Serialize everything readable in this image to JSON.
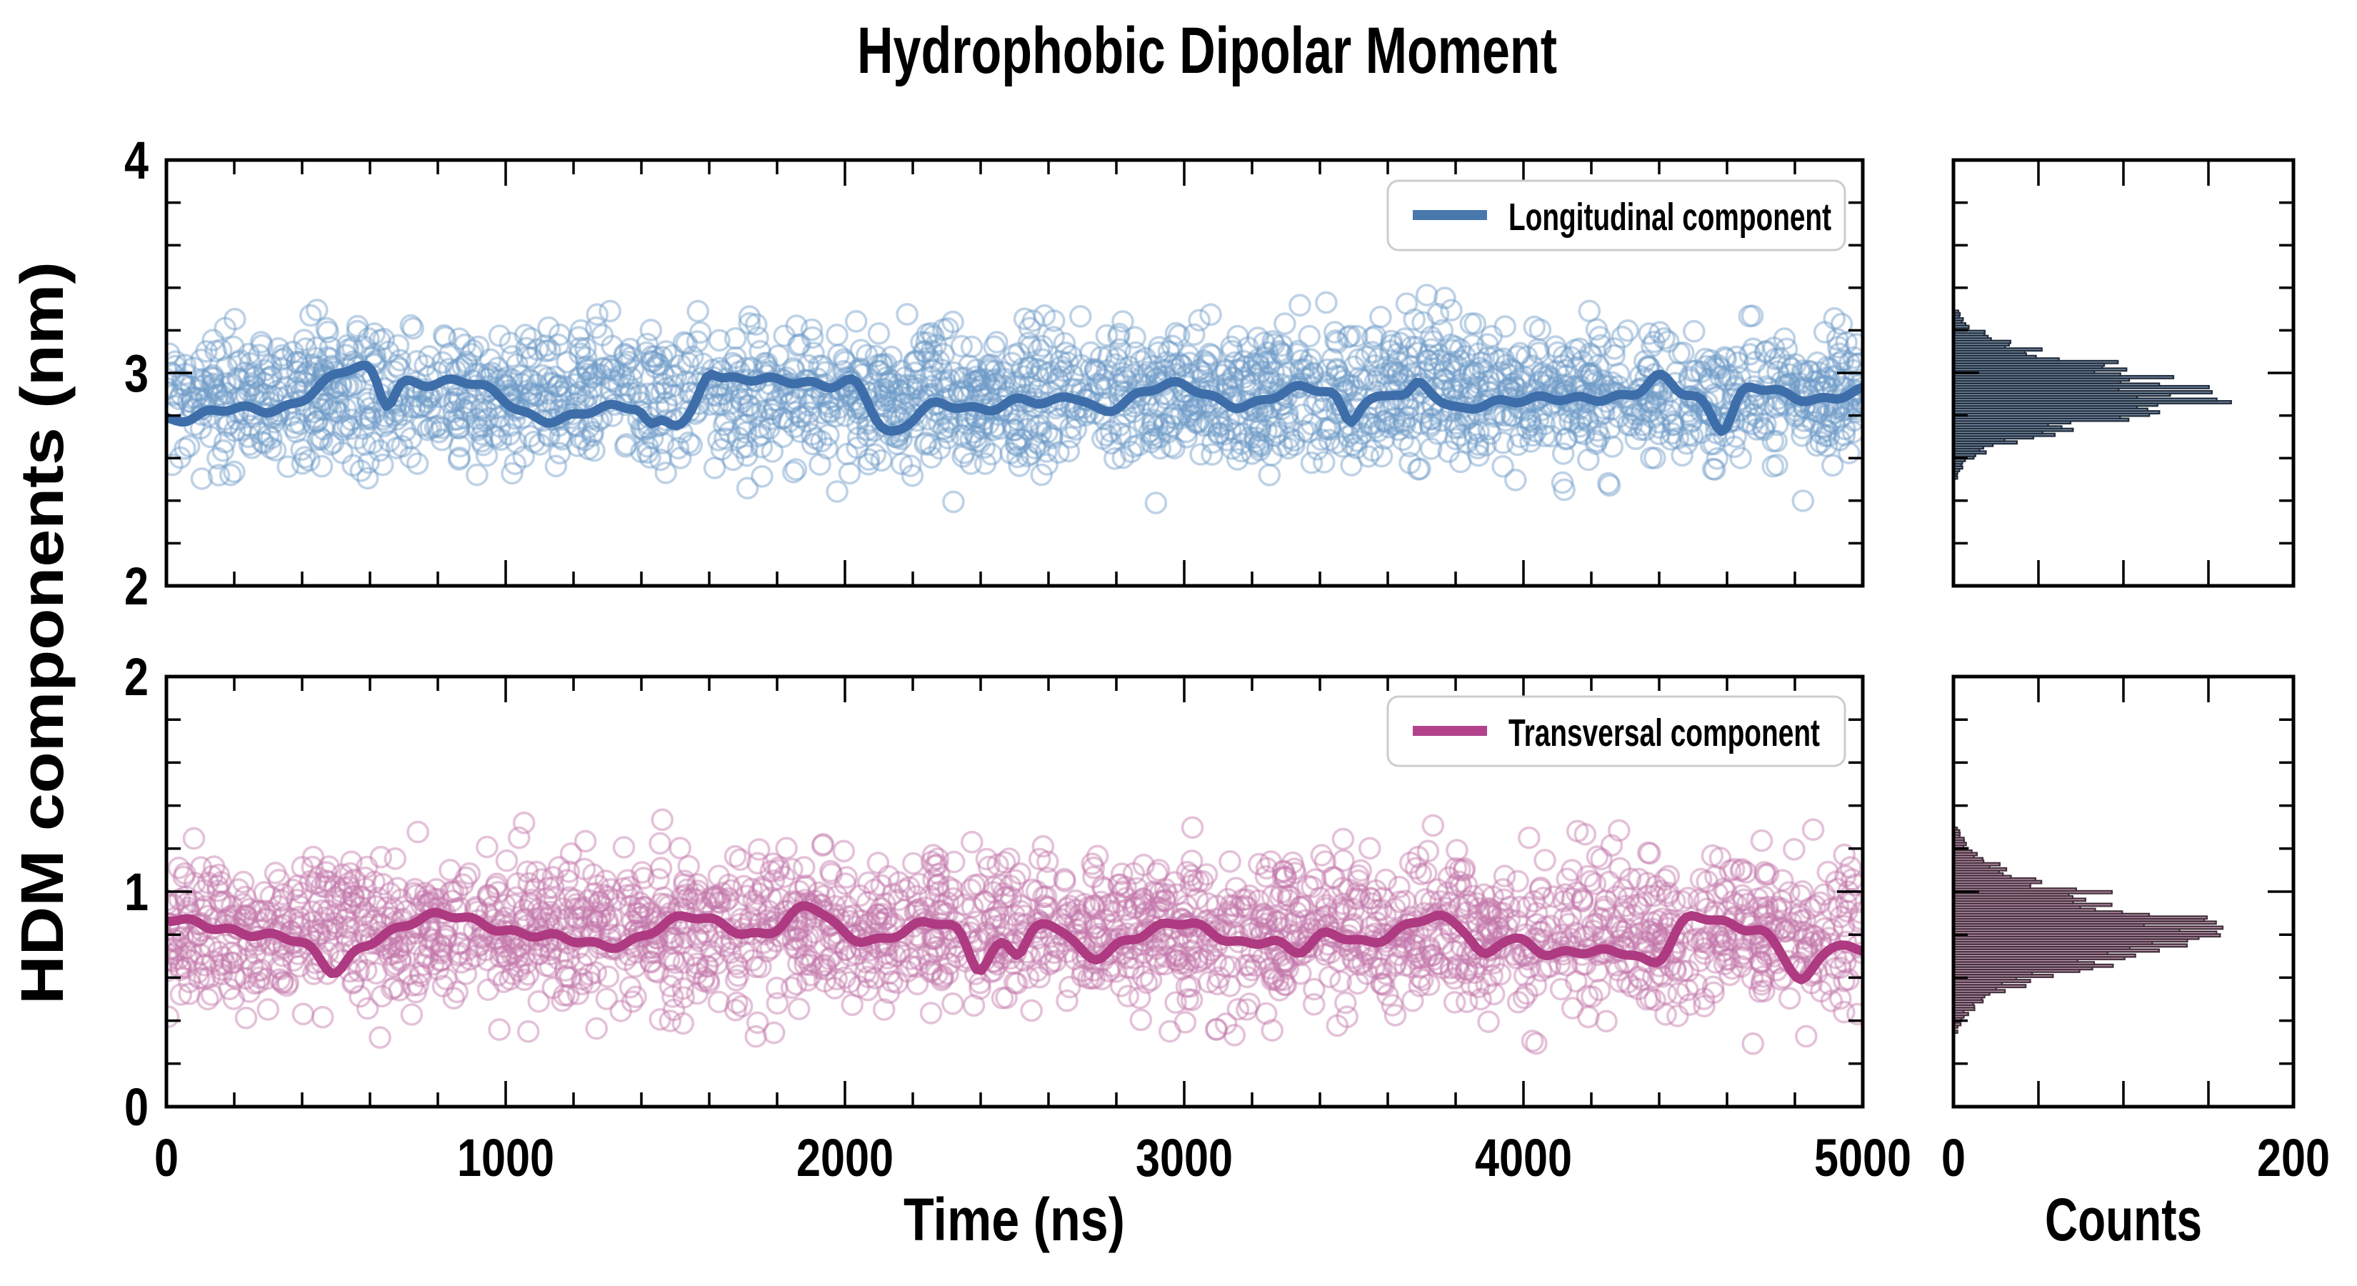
{
  "title": "Hydrophobic Dipolar Moment",
  "axes": {
    "ylabel": "HDM components (nm)",
    "xlabel_time": "Time (ns)",
    "xlabel_counts": "Counts",
    "time_ticks_labeled": [
      "0",
      "1000",
      "2000",
      "3000",
      "4000",
      "5000"
    ],
    "counts_ticks_labeled": [
      "0",
      "200"
    ],
    "top_panel_yticks": [
      "4",
      "3",
      "2"
    ],
    "bottom_panel_yticks": [
      "2",
      "1",
      "0"
    ]
  },
  "colors": {
    "longitudinal_line": "#3e6ea9",
    "longitudinal_marker": "#6f9cc8",
    "transversal_line": "#ae3a81",
    "transversal_marker": "#c478aa",
    "hist_top_fill": "#8fa7c4",
    "hist_top_edge": "#232e3c",
    "hist_bottom_fill": "#d4a5c4",
    "hist_bottom_edge": "#45333e",
    "axis": "#000000",
    "legend_border": "#cccccc",
    "legend_bg": "#ffffff"
  },
  "chart_data": [
    {
      "type": "scatter",
      "panel": "top",
      "series_name": "Longitudinal component",
      "x_range_ns": [
        0,
        5000
      ],
      "y_range_nm": [
        2,
        4
      ],
      "xticks_major_ns": [
        0,
        1000,
        2000,
        3000,
        4000,
        5000
      ],
      "xtick_minor_step_ns": 200,
      "yticks_major_nm": [
        2,
        3,
        4
      ],
      "ytick_minor_step_nm": 0.2,
      "mean_nm": 2.895,
      "scatter_std_nm": 0.16,
      "scatter_range_nm": [
        2.38,
        3.4
      ],
      "line_std_nm": 0.045,
      "legend_position": "upper right",
      "render": {
        "n_points": 2200,
        "seed_scatter": 101,
        "seed_line": 102,
        "marker_opacity": 0.45
      }
    },
    {
      "type": "scatter",
      "panel": "bottom",
      "series_name": "Transversal component",
      "x_range_ns": [
        0,
        5000
      ],
      "y_range_nm": [
        0,
        2
      ],
      "xticks_major_ns": [
        0,
        1000,
        2000,
        3000,
        4000,
        5000
      ],
      "xtick_minor_step_ns": 200,
      "yticks_major_nm": [
        0,
        1,
        2
      ],
      "ytick_minor_step_nm": 0.2,
      "mean_nm": 0.815,
      "scatter_std_nm": 0.175,
      "scatter_range_nm": [
        0.24,
        1.34
      ],
      "line_std_nm": 0.05,
      "legend_position": "upper right",
      "render": {
        "n_points": 2200,
        "seed_scatter": 201,
        "seed_line": 202,
        "marker_opacity": 0.45
      }
    },
    {
      "type": "histogram",
      "panel": "top-right",
      "of_series": "Longitudinal component",
      "orientation": "horizontal",
      "counts_range": [
        0,
        200
      ],
      "counts_ticks_drawn": [
        50,
        100,
        150
      ],
      "value_range_nm": [
        2,
        4
      ],
      "peak_value_nm": 2.9,
      "sigma_nm": 0.135,
      "peak_count": 138,
      "spike_count": 152,
      "bin_width_nm": 0.0118,
      "half_range_nm": 0.48,
      "render": {
        "seed": 301
      }
    },
    {
      "type": "histogram",
      "panel": "bottom-right",
      "of_series": "Transversal component",
      "orientation": "horizontal",
      "counts_range": [
        0,
        200
      ],
      "counts_ticks_drawn": [
        50,
        100,
        150
      ],
      "value_range_nm": [
        0,
        2
      ],
      "peak_value_nm": 0.82,
      "sigma_nm": 0.165,
      "peak_count": 125,
      "spike_count": 133,
      "bin_width_nm": 0.0118,
      "half_range_nm": 0.56,
      "render": {
        "seed": 401
      }
    }
  ]
}
